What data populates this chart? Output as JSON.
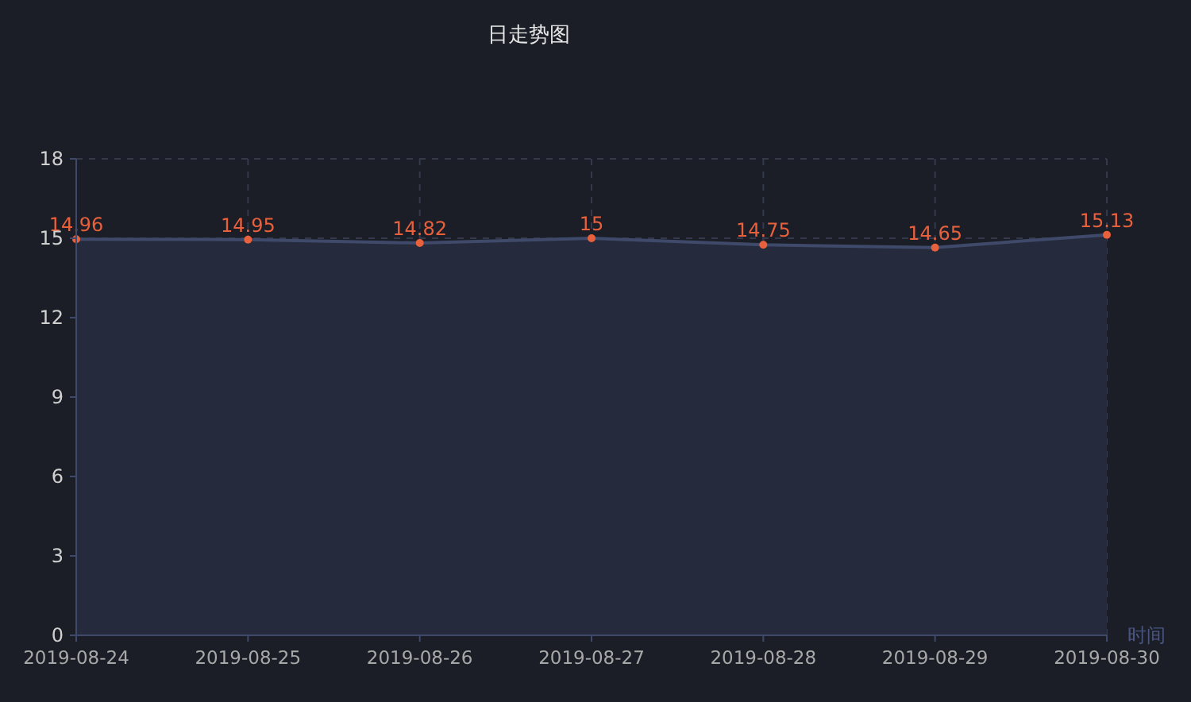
{
  "chart_data": {
    "type": "area",
    "title": "日走势图",
    "xlabel": "时间",
    "categories": [
      "2019-08-24",
      "2019-08-25",
      "2019-08-26",
      "2019-08-27",
      "2019-08-28",
      "2019-08-29",
      "2019-08-30"
    ],
    "series": [
      {
        "color": "#e8603c",
        "values": [
          14.96,
          14.95,
          14.82,
          15,
          14.75,
          14.65,
          15.13
        ]
      }
    ],
    "ylim": [
      0,
      18
    ],
    "yticks": [
      0,
      3,
      6,
      9,
      12,
      15,
      18
    ],
    "grid": true,
    "data_labels": true,
    "marker": "circle"
  }
}
